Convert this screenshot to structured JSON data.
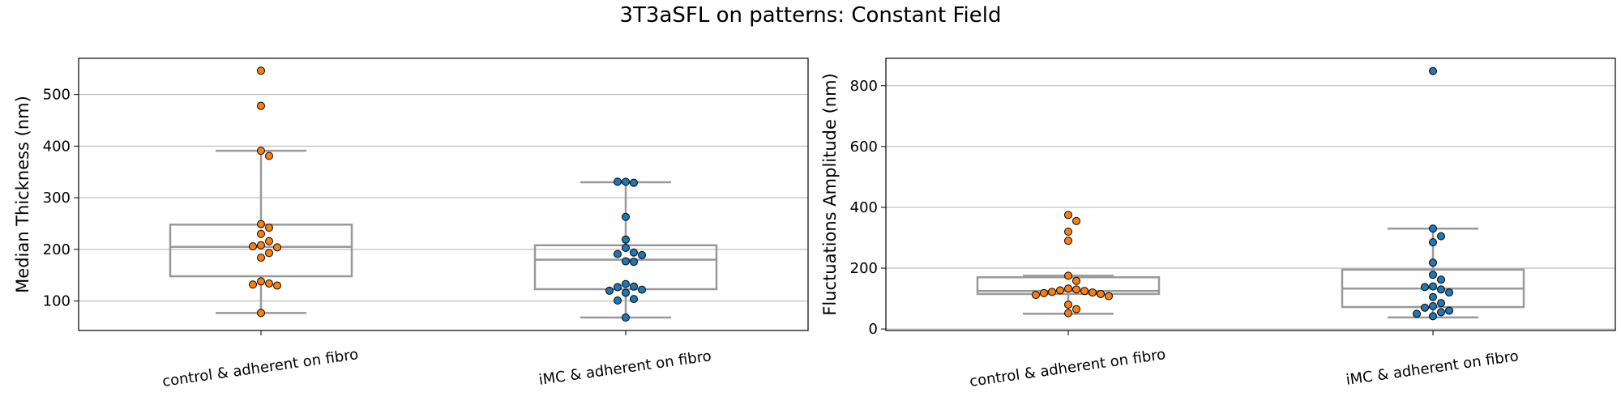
{
  "figure_title": "3T3aSFL on patterns: Constant Field",
  "chart_data": [
    {
      "type": "box",
      "title": "",
      "xlabel": "",
      "ylabel": "Median Thickness (nm)",
      "ylim": [
        43,
        570
      ],
      "yticks": [
        100,
        200,
        300,
        400,
        500
      ],
      "grid": "horizontal",
      "categories": [
        "control & adherent on fibro",
        "iMC & adherent on fibro"
      ],
      "boxes": [
        {
          "whisker_low": 77,
          "q1": 148,
          "median": 205,
          "q3": 248,
          "whisker_high": 391
        },
        {
          "whisker_low": 68,
          "q1": 123,
          "median": 180,
          "q3": 208,
          "whisker_high": 330
        }
      ],
      "points": [
        [
          546,
          478,
          391,
          381,
          249,
          242,
          230,
          216,
          208,
          206,
          204,
          193,
          184,
          138,
          134,
          132,
          130,
          77
        ],
        [
          331,
          329,
          331,
          263,
          219,
          203,
          194,
          191,
          189,
          177,
          176,
          133,
          128,
          127,
          122,
          120,
          116,
          104,
          101,
          68
        ]
      ],
      "point_colors": [
        "#ff7f0e",
        "#1f77b4"
      ],
      "box_color": "#999999"
    },
    {
      "type": "box",
      "title": "",
      "xlabel": "",
      "ylabel": "Fluctuations Amplitude (nm)",
      "ylim": [
        -5,
        890
      ],
      "yticks": [
        0,
        200,
        400,
        600,
        800
      ],
      "grid": "horizontal",
      "categories": [
        "control & adherent on fibro",
        "iMC & adherent on fibro"
      ],
      "boxes": [
        {
          "whisker_low": 50,
          "q1": 115,
          "median": 125,
          "q3": 170,
          "whisker_high": 175
        },
        {
          "whisker_low": 38,
          "q1": 72,
          "median": 133,
          "q3": 195,
          "whisker_high": 330
        }
      ],
      "points": [
        [
          375,
          355,
          320,
          290,
          175,
          158,
          133,
          130,
          127,
          125,
          122,
          120,
          118,
          115,
          112,
          108,
          80,
          65,
          52
        ],
        [
          848,
          330,
          305,
          285,
          218,
          178,
          162,
          140,
          138,
          130,
          120,
          105,
          85,
          75,
          70,
          60,
          55,
          50,
          42
        ]
      ],
      "point_colors": [
        "#ff7f0e",
        "#1f77b4"
      ],
      "box_color": "#999999"
    }
  ]
}
